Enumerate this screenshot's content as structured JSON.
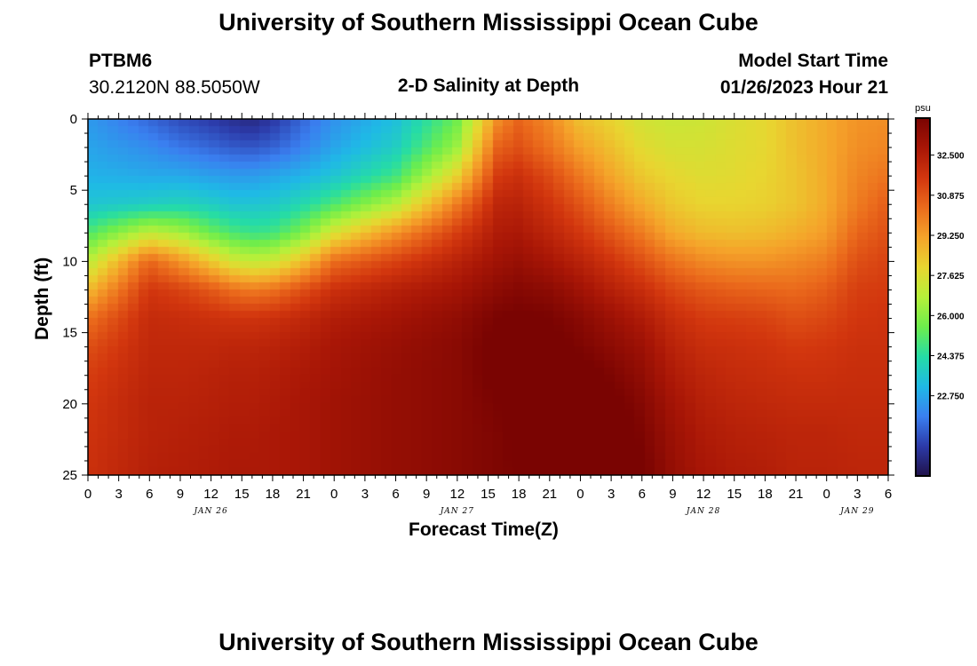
{
  "header": {
    "title": "University of Southern Mississippi Ocean Cube",
    "footer_title": "University of Southern Mississippi Ocean Cube",
    "station_id": "PTBM6",
    "station_coords": "30.2120N  88.5050W",
    "plot_name": "2-D Salinity at Depth",
    "model_start_label": "Model Start Time",
    "model_start_value": "01/26/2023 Hour 21"
  },
  "chart_data": {
    "type": "heatmap",
    "title": "2-D Salinity at Depth",
    "xlabel": "Forecast Time(Z)",
    "ylabel": "Depth (ft)",
    "x_tick_labels": [
      "0",
      "3",
      "6",
      "9",
      "12",
      "15",
      "18",
      "21",
      "0",
      "3",
      "6",
      "9",
      "12",
      "15",
      "18",
      "21",
      "0",
      "3",
      "6",
      "9",
      "12",
      "15",
      "18",
      "21",
      "0",
      "3",
      "6"
    ],
    "x_hours": [
      0,
      3,
      6,
      9,
      12,
      15,
      18,
      21,
      24,
      27,
      30,
      33,
      36,
      39,
      42,
      45,
      48,
      51,
      54,
      57,
      60,
      63,
      66,
      69,
      72,
      75,
      78
    ],
    "day_labels": [
      {
        "text": "JAN 26",
        "hour": 12
      },
      {
        "text": "JAN 27",
        "hour": 36
      },
      {
        "text": "JAN 28",
        "hour": 60
      },
      {
        "text": "JAN 29",
        "hour": 75
      }
    ],
    "y_tick_labels": [
      "0",
      "5",
      "10",
      "15",
      "20",
      "25"
    ],
    "y_ticks": [
      0,
      5,
      10,
      15,
      20,
      25
    ],
    "xlim": [
      0,
      78
    ],
    "ylim": [
      0,
      25
    ],
    "colorbar": {
      "unit": "psu",
      "tick_labels": [
        "22.750",
        "24.375",
        "26.000",
        "27.625",
        "29.250",
        "30.875",
        "32.500"
      ],
      "ticks": [
        22.75,
        24.375,
        26.0,
        27.625,
        29.25,
        30.875,
        32.5
      ],
      "range": [
        19.5,
        34.0
      ],
      "colors": [
        "#20124a",
        "#2c3aa8",
        "#3a7ff0",
        "#1fb9e6",
        "#25dca6",
        "#6ded4c",
        "#b6f03a",
        "#e8d630",
        "#f5a32a",
        "#eb6b1c",
        "#d2360e",
        "#a81606",
        "#7a0402"
      ]
    },
    "field_profiles": {
      "hours": [
        0,
        6,
        9,
        12,
        14,
        16,
        18,
        21,
        24,
        30,
        36,
        40,
        42,
        45,
        48,
        51,
        54,
        57,
        60,
        63,
        66,
        69,
        72,
        75,
        78
      ],
      "depths": [
        0,
        2,
        4,
        6,
        8,
        10,
        12,
        14,
        16,
        18,
        20,
        22,
        25
      ],
      "salinity": [
        [
          22.5,
          22.7,
          23.0,
          23.5,
          25.0,
          26.8,
          28.6,
          30.2,
          31.0,
          31.4,
          31.6,
          31.7,
          31.8
        ],
        [
          21.5,
          22.2,
          22.8,
          23.8,
          27.0,
          30.5,
          31.6,
          32.0,
          32.1,
          32.2,
          32.3,
          32.3,
          32.4
        ],
        [
          21.0,
          21.8,
          22.8,
          24.0,
          26.5,
          29.5,
          31.3,
          31.9,
          32.1,
          32.2,
          32.3,
          32.4,
          32.5
        ],
        [
          20.7,
          21.5,
          22.6,
          23.8,
          25.5,
          28.3,
          30.8,
          31.8,
          32.1,
          32.3,
          32.4,
          32.5,
          32.6
        ],
        [
          20.4,
          21.3,
          22.5,
          23.5,
          25.0,
          27.4,
          30.3,
          31.7,
          32.2,
          32.4,
          32.5,
          32.6,
          32.7
        ],
        [
          20.2,
          21.2,
          22.5,
          23.5,
          24.7,
          27.0,
          30.0,
          31.7,
          32.2,
          32.4,
          32.5,
          32.6,
          32.7
        ],
        [
          20.6,
          21.4,
          22.7,
          23.6,
          24.8,
          27.2,
          30.2,
          31.8,
          32.3,
          32.5,
          32.6,
          32.7,
          32.7
        ],
        [
          21.5,
          22.0,
          23.0,
          24.2,
          25.8,
          28.5,
          31.0,
          32.1,
          32.5,
          32.7,
          32.8,
          32.8,
          32.8
        ],
        [
          22.3,
          22.7,
          23.5,
          25.0,
          27.5,
          30.3,
          31.8,
          32.5,
          32.8,
          32.9,
          33.0,
          33.0,
          33.0
        ],
        [
          23.3,
          23.8,
          24.8,
          26.8,
          29.5,
          31.3,
          32.4,
          32.9,
          33.2,
          33.3,
          33.3,
          33.3,
          33.3
        ],
        [
          25.5,
          26.3,
          28.0,
          30.0,
          31.4,
          32.3,
          32.9,
          33.4,
          33.6,
          33.6,
          33.6,
          33.6,
          33.6
        ],
        [
          29.6,
          30.6,
          31.5,
          32.2,
          32.6,
          33.0,
          33.5,
          34.0,
          34.2,
          34.2,
          34.0,
          33.9,
          33.9
        ],
        [
          30.5,
          31.0,
          31.8,
          32.3,
          32.7,
          33.2,
          33.7,
          34.1,
          34.3,
          34.4,
          34.2,
          34.1,
          34.0
        ],
        [
          29.7,
          30.2,
          31.1,
          31.7,
          32.2,
          32.8,
          33.5,
          34.0,
          34.2,
          34.5,
          34.5,
          34.4,
          34.3
        ],
        [
          28.5,
          29.2,
          30.1,
          30.9,
          31.6,
          32.3,
          33.0,
          33.6,
          33.9,
          34.3,
          34.5,
          34.6,
          34.6
        ],
        [
          28.0,
          28.5,
          29.1,
          29.9,
          30.8,
          31.7,
          32.4,
          33.1,
          33.5,
          33.9,
          34.2,
          34.4,
          34.5
        ],
        [
          27.4,
          27.8,
          28.3,
          29.0,
          30.0,
          31.0,
          31.9,
          32.6,
          33.1,
          33.4,
          33.7,
          33.9,
          34.1
        ],
        [
          27.2,
          27.5,
          27.9,
          28.3,
          29.0,
          30.2,
          31.2,
          31.9,
          32.3,
          32.6,
          32.9,
          33.1,
          33.3
        ],
        [
          27.3,
          27.5,
          27.7,
          28.0,
          28.6,
          29.7,
          30.8,
          31.5,
          31.9,
          32.2,
          32.4,
          32.6,
          32.8
        ],
        [
          27.6,
          27.7,
          27.8,
          28.0,
          28.5,
          29.5,
          30.6,
          31.4,
          31.8,
          32.0,
          32.2,
          32.4,
          32.6
        ],
        [
          27.9,
          27.9,
          28.0,
          28.1,
          28.6,
          29.5,
          30.5,
          31.3,
          31.7,
          31.9,
          32.1,
          32.3,
          32.5
        ],
        [
          28.5,
          28.5,
          28.4,
          28.4,
          28.9,
          29.7,
          30.4,
          31.0,
          31.5,
          31.8,
          32.0,
          32.2,
          32.3
        ],
        [
          29.0,
          29.0,
          29.0,
          29.0,
          29.3,
          30.0,
          30.7,
          31.2,
          31.6,
          31.8,
          32.0,
          32.2,
          32.3
        ],
        [
          29.5,
          29.6,
          29.8,
          30.0,
          30.5,
          31.0,
          31.4,
          31.6,
          31.8,
          31.9,
          32.0,
          32.1,
          32.2
        ],
        [
          29.6,
          29.8,
          30.2,
          30.7,
          31.0,
          31.3,
          31.5,
          31.7,
          31.8,
          31.9,
          32.0,
          32.1,
          32.2
        ]
      ]
    }
  }
}
